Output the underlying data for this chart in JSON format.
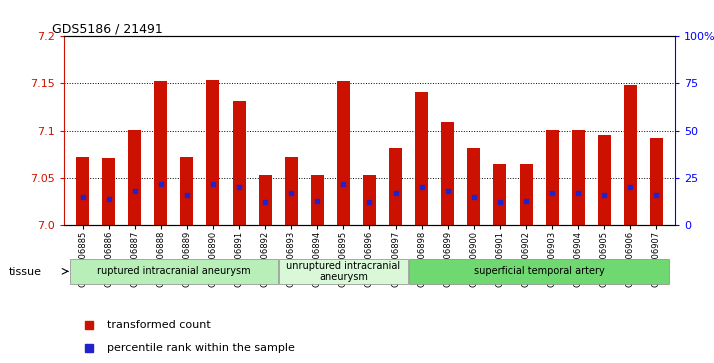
{
  "title": "GDS5186 / 21491",
  "samples": [
    "GSM1306885",
    "GSM1306886",
    "GSM1306887",
    "GSM1306888",
    "GSM1306889",
    "GSM1306890",
    "GSM1306891",
    "GSM1306892",
    "GSM1306893",
    "GSM1306894",
    "GSM1306895",
    "GSM1306896",
    "GSM1306897",
    "GSM1306898",
    "GSM1306899",
    "GSM1306900",
    "GSM1306901",
    "GSM1306902",
    "GSM1306903",
    "GSM1306904",
    "GSM1306905",
    "GSM1306906",
    "GSM1306907"
  ],
  "transformed_count": [
    7.072,
    7.071,
    7.101,
    7.153,
    7.072,
    7.154,
    7.131,
    7.053,
    7.072,
    7.053,
    7.153,
    7.053,
    7.082,
    7.141,
    7.109,
    7.082,
    7.065,
    7.065,
    7.101,
    7.101,
    7.095,
    7.148,
    7.092
  ],
  "percentile_rank": [
    15,
    14,
    18,
    22,
    16,
    22,
    20,
    12,
    17,
    13,
    22,
    12,
    17,
    20,
    18,
    15,
    12,
    13,
    17,
    17,
    16,
    20,
    16
  ],
  "groups": [
    {
      "label": "ruptured intracranial aneurysm",
      "start": 0,
      "end": 8,
      "color": "#b8eeb8"
    },
    {
      "label": "unruptured intracranial\naneurysm",
      "start": 8,
      "end": 13,
      "color": "#d8f8d8"
    },
    {
      "label": "superficial temporal artery",
      "start": 13,
      "end": 23,
      "color": "#70d870"
    }
  ],
  "ylim_left": [
    7.0,
    7.2
  ],
  "ylim_right": [
    0,
    100
  ],
  "yticks_left": [
    7.0,
    7.05,
    7.1,
    7.15,
    7.2
  ],
  "yticks_right": [
    0,
    25,
    50,
    75,
    100
  ],
  "ytick_labels_right": [
    "0",
    "25",
    "50",
    "75",
    "100%"
  ],
  "bar_color": "#cc1100",
  "dot_color": "#2222cc",
  "background_plot": "#ffffff",
  "tissue_label": "tissue",
  "legend_items": [
    {
      "label": "transformed count",
      "color": "#cc1100"
    },
    {
      "label": "percentile rank within the sample",
      "color": "#2222cc"
    }
  ]
}
